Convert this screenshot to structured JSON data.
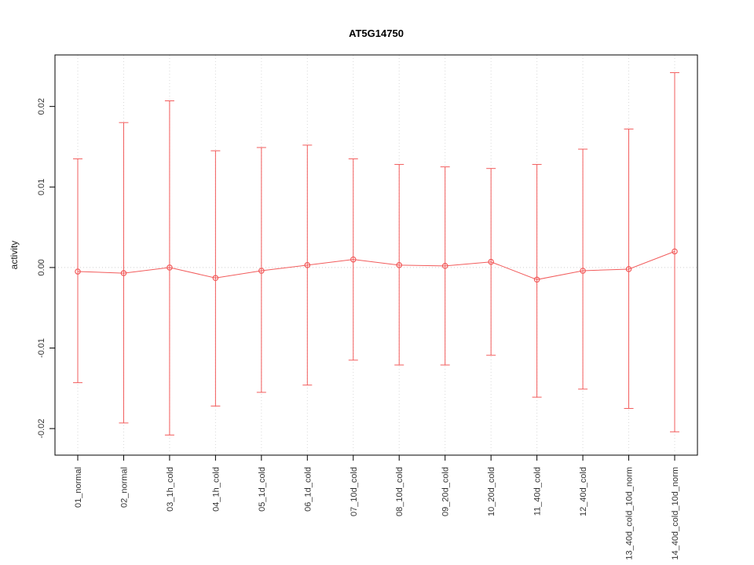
{
  "chart_data": {
    "type": "line",
    "title": "AT5G14750",
    "xlabel": "",
    "ylabel": "activity",
    "ylim": [
      -0.0233,
      0.0264
    ],
    "yticks": [
      -0.02,
      -0.01,
      0,
      0.01,
      0.02
    ],
    "ytick_labels": [
      "-0.02",
      "-0.01",
      "0.00",
      "0.01",
      "0.02"
    ],
    "grid": "dotted vertical gridline at each category; dotted horizontal line at y=0",
    "legend": "none",
    "categories": [
      "01_normal",
      "02_normal",
      "03_1h_cold",
      "04_1h_cold",
      "05_1d_cold",
      "06_1d_cold",
      "07_10d_cold",
      "08_10d_cold",
      "09_20d_cold",
      "10_20d_cold",
      "11_40d_cold",
      "12_40d_cold",
      "13_40d_cold_10d_norm",
      "14_40d_cold_10d_norm"
    ],
    "series": [
      {
        "name": "mean activity with error bars",
        "means": [
          -0.0005,
          -0.0007,
          0.0,
          -0.0013,
          -0.0004,
          0.0003,
          0.001,
          0.0003,
          0.0002,
          0.0007,
          -0.0015,
          -0.0004,
          -0.0002,
          0.002
        ],
        "upper": [
          0.0135,
          0.018,
          0.0207,
          0.0145,
          0.0149,
          0.0152,
          0.0135,
          0.0128,
          0.0125,
          0.0123,
          0.0128,
          0.0147,
          0.0172,
          0.0242
        ],
        "lower": [
          -0.0143,
          -0.0193,
          -0.0208,
          -0.0172,
          -0.0155,
          -0.0146,
          -0.0115,
          -0.0121,
          -0.0121,
          -0.0109,
          -0.0161,
          -0.0151,
          -0.0175,
          -0.0204
        ]
      }
    ],
    "colors": {
      "series": "#f25c5c",
      "grid": "#d9d9d9",
      "zero_line": "#cfcfcf",
      "axis": "#000000",
      "text": "#333333"
    }
  }
}
